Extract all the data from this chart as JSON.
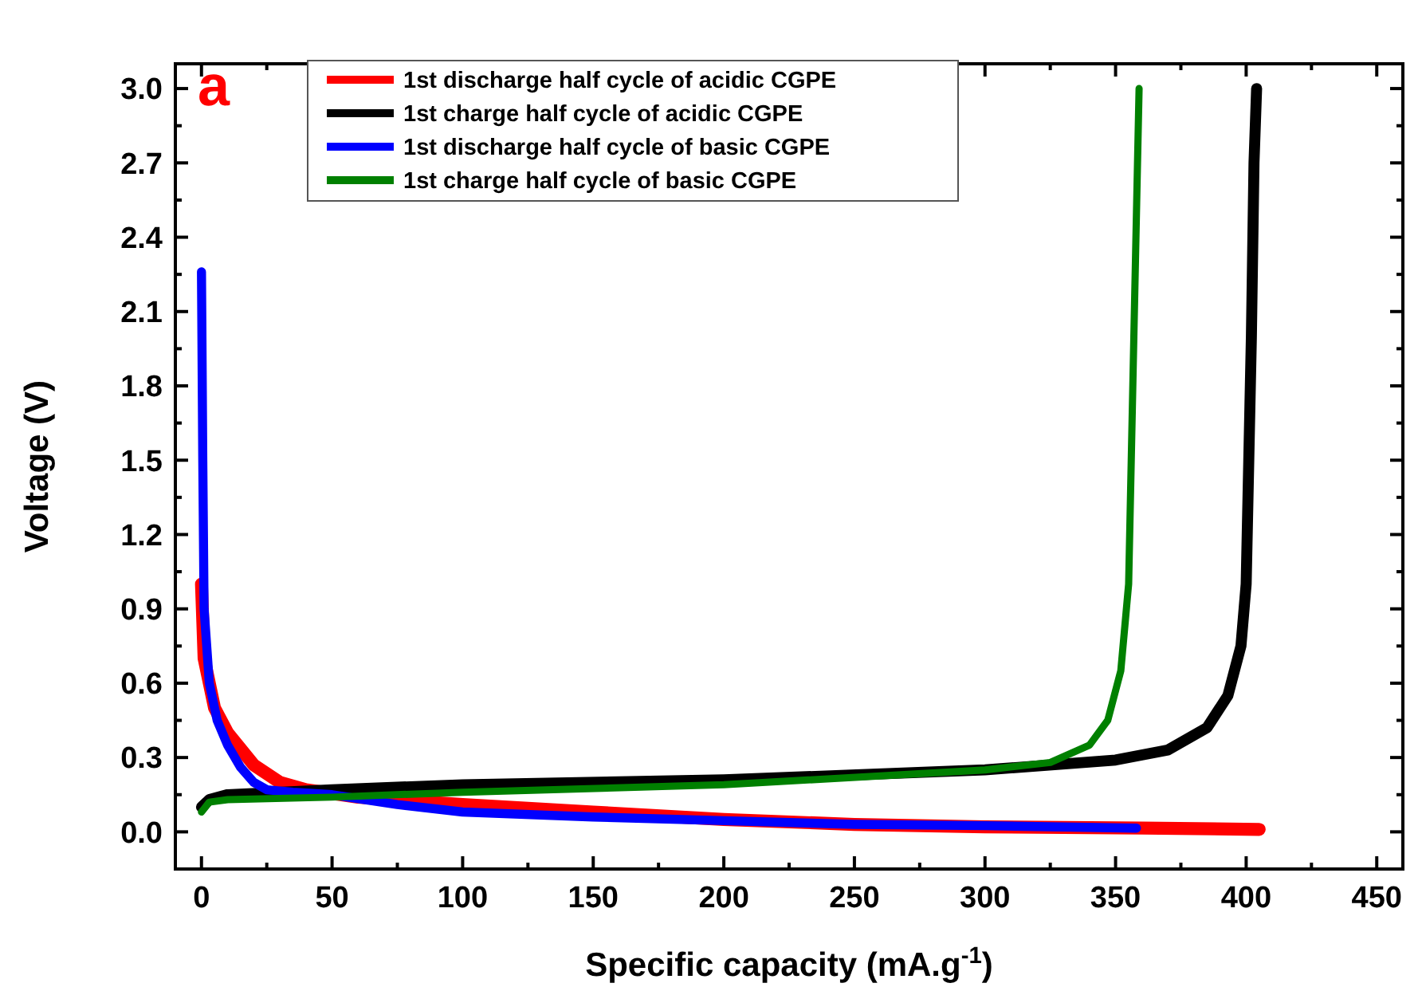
{
  "chart_data": {
    "type": "line",
    "xlabel": "Specific capacity (mA.g$^{-1}$)",
    "ylabel": "Voltage (V)",
    "annotations": [
      "a"
    ],
    "xlim": [
      -10,
      460
    ],
    "ylim": [
      -0.15,
      3.1
    ],
    "xticks": [
      0,
      50,
      100,
      150,
      200,
      250,
      300,
      350,
      400,
      450
    ],
    "yticks": [
      {
        "value": 0,
        "label": "0.0"
      },
      {
        "value": 0.3,
        "label": "0.3"
      },
      {
        "value": 0.6,
        "label": "0.6"
      },
      {
        "value": 0.9,
        "label": "0.9"
      },
      {
        "value": 1.2,
        "label": "1.2"
      },
      {
        "value": 1.5,
        "label": "1.5"
      },
      {
        "value": 1.8,
        "label": "1.8"
      },
      {
        "value": 2.1,
        "label": "2.1"
      },
      {
        "value": 2.4,
        "label": "2.4"
      },
      {
        "value": 2.7,
        "label": "2.7"
      },
      {
        "value": 3,
        "label": "3.0"
      }
    ],
    "grid": false,
    "legend": "top left",
    "marker": "none",
    "line_style": "solid",
    "series": [
      {
        "name": "1st discharge half cycle of acidic CGPE",
        "color": "#ff0000",
        "x": [
          0,
          1,
          5,
          10,
          20,
          30,
          40,
          60,
          100,
          150,
          200,
          250,
          300,
          360,
          405
        ],
        "values": [
          1.0,
          0.7,
          0.5,
          0.4,
          0.27,
          0.2,
          0.17,
          0.14,
          0.11,
          0.08,
          0.05,
          0.03,
          0.02,
          0.015,
          0.01
        ]
      },
      {
        "name": "1st charge half cycle of acidic CGPE",
        "color": "#000000",
        "x": [
          0,
          3,
          10,
          50,
          100,
          200,
          300,
          350,
          370,
          385,
          393,
          398,
          400,
          401,
          402,
          403,
          404
        ],
        "values": [
          0.1,
          0.13,
          0.15,
          0.17,
          0.19,
          0.21,
          0.25,
          0.29,
          0.33,
          0.42,
          0.55,
          0.75,
          1.0,
          1.5,
          2.0,
          2.7,
          3.0
        ]
      },
      {
        "name": "1st discharge half cycle of basic CGPE",
        "color": "#0000ff",
        "x": [
          0,
          0.5,
          1,
          3,
          6,
          10,
          15,
          20,
          25,
          35,
          50,
          75,
          100,
          150,
          200,
          250,
          300,
          358
        ],
        "values": [
          2.26,
          1.5,
          0.9,
          0.6,
          0.45,
          0.35,
          0.26,
          0.2,
          0.17,
          0.16,
          0.15,
          0.11,
          0.08,
          0.06,
          0.045,
          0.03,
          0.025,
          0.015
        ]
      },
      {
        "name": "1st charge half cycle of basic CGPE",
        "color": "#008000",
        "x": [
          0,
          3,
          10,
          50,
          100,
          200,
          300,
          325,
          340,
          347,
          352,
          355,
          356,
          357,
          358,
          359
        ],
        "values": [
          0.08,
          0.12,
          0.13,
          0.14,
          0.16,
          0.19,
          0.25,
          0.28,
          0.35,
          0.45,
          0.65,
          1.0,
          1.5,
          2.0,
          2.5,
          3.0
        ]
      }
    ]
  }
}
